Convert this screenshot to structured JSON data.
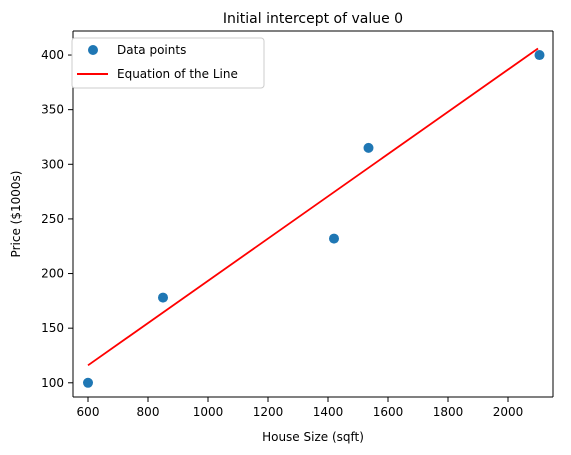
{
  "chart_data": {
    "type": "scatter",
    "title": "Initial intercept of value 0",
    "xlabel": "House Size (sqft)",
    "ylabel": "Price ($1000s)",
    "xlim": [
      550,
      2150
    ],
    "ylim": [
      87,
      422
    ],
    "xticks": [
      600,
      800,
      1000,
      1200,
      1400,
      1600,
      1800,
      2000
    ],
    "yticks": [
      100,
      150,
      200,
      250,
      300,
      350,
      400
    ],
    "grid": false,
    "legend_placement": "upper-left",
    "series": [
      {
        "name": "Data points",
        "kind": "scatter",
        "color": "#1f77b4",
        "x": [
          600,
          850,
          1420,
          1535,
          2105
        ],
        "y": [
          100,
          178,
          232,
          315,
          400
        ]
      },
      {
        "name": "Equation of the Line",
        "kind": "line",
        "color": "#ff0000",
        "x": [
          600,
          2100
        ],
        "y": [
          116,
          406
        ]
      }
    ]
  }
}
